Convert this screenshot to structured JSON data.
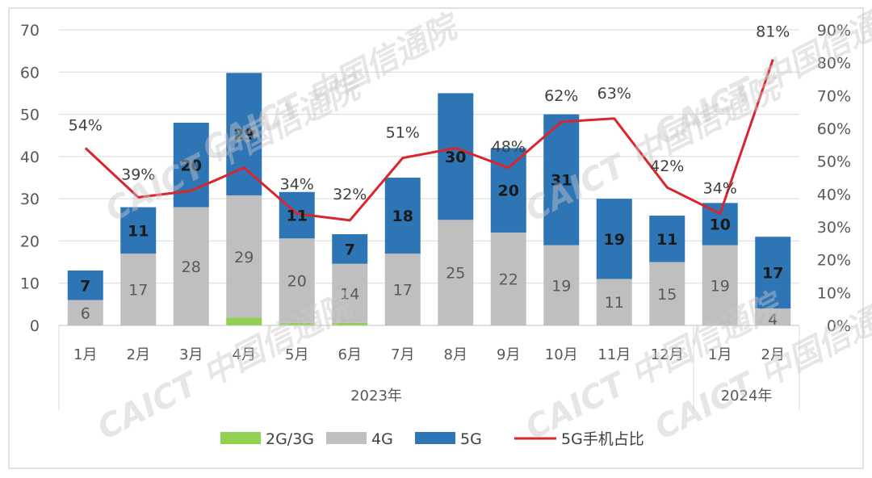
{
  "chart_data": {
    "type": "bar",
    "stacked": true,
    "title": "",
    "categories": [
      "1月",
      "2月",
      "3月",
      "4月",
      "5月",
      "6月",
      "7月",
      "8月",
      "9月",
      "10月",
      "11月",
      "12月",
      "1月",
      "2月"
    ],
    "groups": [
      {
        "label": "2023年",
        "count": 12
      },
      {
        "label": "2024年",
        "count": 2
      }
    ],
    "series": [
      {
        "name": "2G/3G",
        "color": "#92d050",
        "values": [
          0,
          0,
          0,
          1.8,
          0.6,
          0.6,
          0,
          0,
          0,
          0,
          0,
          0,
          0,
          0
        ]
      },
      {
        "name": "4G",
        "color": "#bfbfbf",
        "values": [
          6,
          17,
          28,
          29,
          20,
          14,
          17,
          25,
          22,
          19,
          11,
          15,
          19,
          4
        ]
      },
      {
        "name": "5G",
        "color": "#2e75b6",
        "values": [
          7,
          11,
          20,
          29,
          11,
          7,
          18,
          30,
          20,
          31,
          19,
          11,
          10,
          17
        ]
      }
    ],
    "line_series": {
      "name": "5G手机占比",
      "color": "#d9262d",
      "axis": "right",
      "values": [
        54,
        39,
        41,
        48,
        34,
        32,
        51,
        54,
        48,
        62,
        63,
        42,
        34,
        81
      ],
      "labels": [
        "54%",
        "39%",
        "",
        "",
        "34%",
        "32%",
        "51%",
        "",
        "48%",
        "62%",
        "63%",
        "42%",
        "34%",
        "81%"
      ]
    },
    "bar_labels_4g": [
      "6",
      "17",
      "28",
      "29",
      "20",
      "14",
      "17",
      "25",
      "22",
      "19",
      "11",
      "15",
      "19",
      "4"
    ],
    "bar_labels_5g": [
      "7",
      "11",
      "20",
      "29",
      "11",
      "7",
      "18",
      "30",
      "20",
      "31",
      "19",
      "11",
      "10",
      "17"
    ],
    "y_left": {
      "ylim": [
        0,
        70
      ],
      "ticks": [
        "0",
        "10",
        "20",
        "30",
        "40",
        "50",
        "60",
        "70"
      ]
    },
    "y_right": {
      "ylim": [
        0,
        90
      ],
      "ticks": [
        "0%",
        "10%",
        "20%",
        "30%",
        "40%",
        "50%",
        "60%",
        "70%",
        "80%",
        "90%"
      ]
    },
    "legend": [
      {
        "label": "2G/3G",
        "color": "#92d050",
        "kind": "box"
      },
      {
        "label": "4G",
        "color": "#bfbfbf",
        "kind": "box"
      },
      {
        "label": "5G",
        "color": "#2e75b6",
        "kind": "box"
      },
      {
        "label": "5G手机占比",
        "color": "#d9262d",
        "kind": "line"
      }
    ],
    "legend_position": "bottom",
    "grid": true,
    "watermark": "CAICT 中国信通院"
  }
}
